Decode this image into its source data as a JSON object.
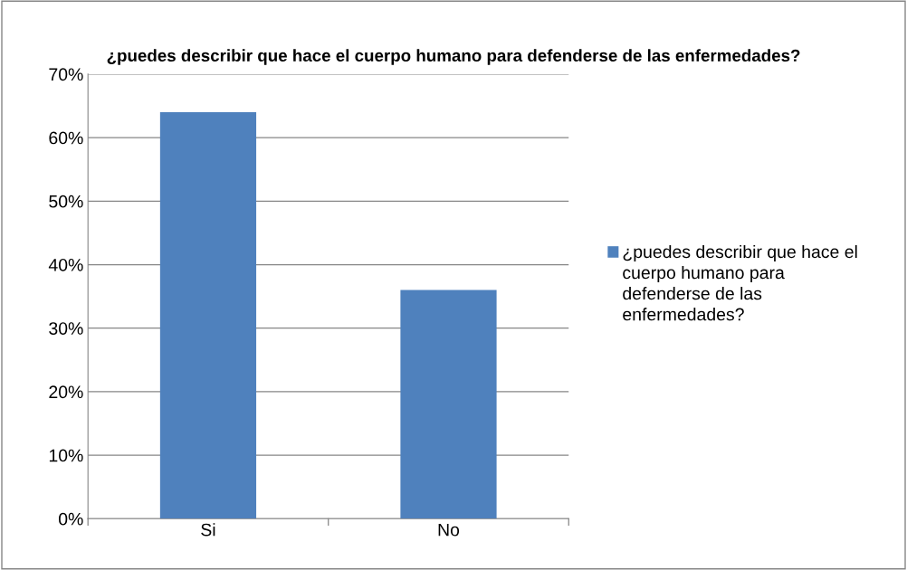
{
  "chart_data": {
    "type": "bar",
    "title": "¿puedes describir que hace el cuerpo humano para defenderse de las enfermedades?",
    "categories": [
      "Si",
      "No"
    ],
    "series": [
      {
        "name": "¿puedes describir que hace el cuerpo humano para defenderse de las enfermedades?",
        "color": "#4f81bd",
        "values": [
          64,
          36
        ]
      }
    ],
    "ylim": [
      0,
      70
    ],
    "yticks": [
      {
        "value": 0,
        "label": "0%"
      },
      {
        "value": 10,
        "label": "10%"
      },
      {
        "value": 20,
        "label": "20%"
      },
      {
        "value": 30,
        "label": "30%"
      },
      {
        "value": 40,
        "label": "40%"
      },
      {
        "value": 50,
        "label": "50%"
      },
      {
        "value": 60,
        "label": "60%"
      },
      {
        "value": 70,
        "label": "70%"
      }
    ],
    "grid": "y",
    "legend": "right"
  }
}
